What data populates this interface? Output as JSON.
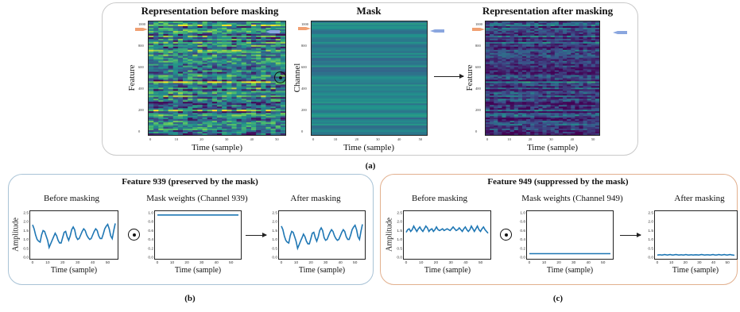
{
  "panel_a": {
    "title_before": "Representation before masking",
    "title_mask": "Mask",
    "title_after": "Representation after masking",
    "ylabel_feature": "Feature",
    "ylabel_channel": "Channel",
    "xlabel": "Time (sample)",
    "caption": "(a)",
    "y_ticks": [
      "1000",
      "800",
      "600",
      "400",
      "200",
      "0"
    ],
    "x_ticks": [
      "0",
      "10",
      "20",
      "30",
      "40",
      "50"
    ],
    "operator": "⊙"
  },
  "panel_b": {
    "title": "Feature 939 (preserved by the mask)",
    "sub_before": "Before masking",
    "sub_mask": "Mask weights (Channel 939)",
    "sub_after": "After masking",
    "ylabel": "Amplitude",
    "xlabel": "Time (sample)",
    "caption": "(b)"
  },
  "panel_c": {
    "title": "Feature 949 (suppressed by the mask)",
    "sub_before": "Before masking",
    "sub_mask": "Mask weights (Channel 949)",
    "sub_after": "After masking",
    "ylabel": "Amplitude",
    "xlabel": "Time (sample)",
    "caption": "(c)"
  },
  "line_plot_ticks": {
    "y": [
      "2.5",
      "2.0",
      "1.5",
      "1.0",
      "0.5",
      "0.0"
    ],
    "mask_y": [
      "1.0",
      "0.8",
      "0.6",
      "0.4",
      "0.2",
      "0.0"
    ],
    "x": [
      "0",
      "10",
      "20",
      "30",
      "40",
      "50"
    ]
  },
  "colors": {
    "line": "#1f77b4",
    "marker_orange": "#f0a072",
    "marker_blue": "#8aa6df",
    "border_b": "#a9c3d6",
    "border_c": "#e2b08e"
  },
  "chart_data": [
    {
      "type": "line",
      "panel": "b-before",
      "x_range": [
        0,
        55
      ],
      "ylim": [
        0,
        2.5
      ],
      "values": [
        1.82,
        1.6,
        1.25,
        1.0,
        0.9,
        0.85,
        1.25,
        1.5,
        1.45,
        1.2,
        0.95,
        0.55,
        0.75,
        0.95,
        1.15,
        1.35,
        1.2,
        0.95,
        0.8,
        0.8,
        1.1,
        1.4,
        1.45,
        1.15,
        0.95,
        1.2,
        1.55,
        1.7,
        1.55,
        1.15,
        1.0,
        1.05,
        1.25,
        1.45,
        1.6,
        1.5,
        1.25,
        1.1,
        1.0,
        1.05,
        1.25,
        1.45,
        1.6,
        1.5,
        1.2,
        1.05,
        1.05,
        1.3,
        1.6,
        1.75,
        1.85,
        1.6,
        1.2,
        1.05,
        1.5,
        1.9
      ]
    },
    {
      "type": "line",
      "panel": "b-mask",
      "x_range": [
        0,
        55
      ],
      "ylim": [
        0,
        1.0
      ],
      "values": [
        0.95,
        0.95
      ]
    },
    {
      "type": "line",
      "panel": "b-after",
      "x_range": [
        0,
        55
      ],
      "ylim": [
        0,
        2.5
      ],
      "values": [
        1.75,
        1.55,
        1.2,
        0.95,
        0.85,
        0.8,
        1.2,
        1.45,
        1.4,
        1.15,
        0.9,
        0.5,
        0.7,
        0.9,
        1.1,
        1.3,
        1.15,
        0.9,
        0.75,
        0.75,
        1.05,
        1.35,
        1.4,
        1.1,
        0.9,
        1.15,
        1.5,
        1.65,
        1.5,
        1.1,
        0.95,
        1.0,
        1.2,
        1.4,
        1.55,
        1.45,
        1.2,
        1.05,
        0.95,
        1.0,
        1.2,
        1.4,
        1.55,
        1.45,
        1.15,
        1.0,
        1.0,
        1.25,
        1.55,
        1.7,
        1.8,
        1.55,
        1.15,
        1.0,
        1.45,
        1.85
      ]
    },
    {
      "type": "line",
      "panel": "c-before",
      "x_range": [
        0,
        55
      ],
      "ylim": [
        0,
        2.5
      ],
      "values": [
        1.4,
        1.55,
        1.6,
        1.45,
        1.55,
        1.75,
        1.6,
        1.45,
        1.6,
        1.7,
        1.55,
        1.45,
        1.6,
        1.75,
        1.65,
        1.45,
        1.55,
        1.6,
        1.45,
        1.55,
        1.7,
        1.55,
        1.5,
        1.55,
        1.6,
        1.5,
        1.55,
        1.6,
        1.55,
        1.5,
        1.6,
        1.7,
        1.6,
        1.5,
        1.55,
        1.65,
        1.55,
        1.45,
        1.6,
        1.7,
        1.55,
        1.45,
        1.55,
        1.75,
        1.6,
        1.45,
        1.6,
        1.75,
        1.55,
        1.45,
        1.6,
        1.7,
        1.55,
        1.45,
        1.35
      ]
    },
    {
      "type": "line",
      "panel": "c-mask",
      "x_range": [
        0,
        55
      ],
      "ylim": [
        0,
        1.0
      ],
      "values": [
        0.08,
        0.08
      ]
    },
    {
      "type": "line",
      "panel": "c-after",
      "x_range": [
        0,
        55
      ],
      "ylim": [
        0,
        2.5
      ],
      "values": [
        0.12,
        0.13,
        0.14,
        0.12,
        0.13,
        0.15,
        0.14,
        0.12,
        0.14,
        0.15,
        0.13,
        0.12,
        0.14,
        0.15,
        0.14,
        0.12,
        0.13,
        0.14,
        0.12,
        0.13,
        0.15,
        0.13,
        0.12,
        0.13,
        0.14,
        0.12,
        0.13,
        0.14,
        0.13,
        0.12,
        0.14,
        0.15,
        0.14,
        0.12,
        0.13,
        0.14,
        0.13,
        0.12,
        0.14,
        0.15,
        0.13,
        0.12,
        0.13,
        0.15,
        0.14,
        0.12,
        0.14,
        0.15,
        0.13,
        0.12,
        0.14,
        0.15,
        0.13,
        0.12,
        0.11
      ]
    }
  ]
}
